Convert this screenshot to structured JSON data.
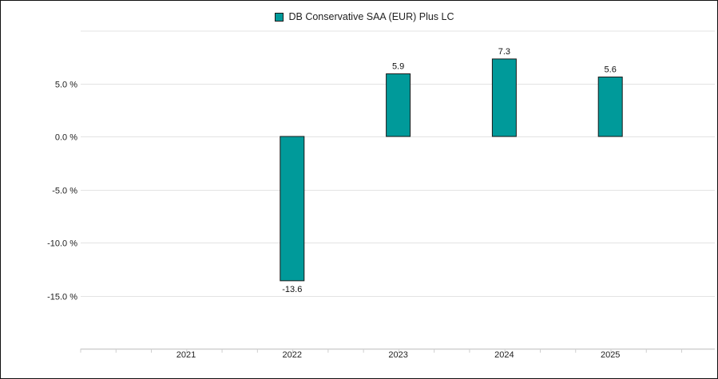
{
  "chart_data": {
    "type": "bar",
    "categories": [
      "2021",
      "2022",
      "2023",
      "2024",
      "2025"
    ],
    "series": [
      {
        "name": "DB Conservative SAA (EUR) Plus LC",
        "values": [
          null,
          -13.6,
          5.9,
          7.3,
          5.6
        ],
        "color": "#009a9a"
      }
    ],
    "data_labels": [
      "",
      "-13.6",
      "5.9",
      "7.3",
      "5.6"
    ],
    "yticks": [
      5.0,
      0.0,
      -5.0,
      -10.0,
      -15.0
    ],
    "ytick_labels": [
      "5.0 %",
      "0.0 %",
      "-5.0 %",
      "-10.0 %",
      "-15.0 %"
    ],
    "ylim": [
      -20,
      10
    ],
    "grid": true,
    "legend_position": "top-center",
    "title": "",
    "xlabel": "",
    "ylabel": ""
  }
}
